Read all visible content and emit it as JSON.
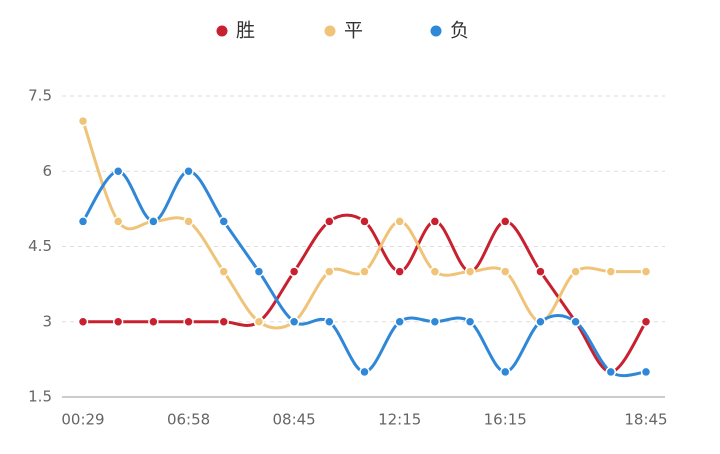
{
  "chart_data": {
    "type": "line",
    "categories": [
      "00:29",
      null,
      null,
      "06:58",
      null,
      null,
      "08:45",
      null,
      null,
      "12:15",
      null,
      null,
      "16:15",
      null,
      null,
      null,
      "18:45"
    ],
    "series": [
      {
        "name": "胜",
        "color": "#c8202f",
        "values": [
          3,
          3,
          3,
          3,
          3,
          3,
          4,
          5,
          5,
          4,
          5,
          4,
          5,
          4,
          3,
          2,
          3
        ]
      },
      {
        "name": "平",
        "color": "#f0c478",
        "values": [
          7,
          5,
          5,
          5,
          4,
          3,
          3,
          4,
          4,
          5,
          4,
          4,
          4,
          3,
          4,
          4,
          4
        ]
      },
      {
        "name": "负",
        "color": "#2f87d8",
        "values": [
          5,
          6,
          5,
          6,
          5,
          4,
          3,
          3,
          2,
          3,
          3,
          3,
          2,
          3,
          3,
          2,
          2
        ]
      }
    ],
    "ylim": [
      1.5,
      7.5
    ],
    "yticks": [
      1.5,
      3,
      4.5,
      6,
      7.5
    ],
    "grid": true,
    "smooth": true,
    "legend": "top"
  }
}
